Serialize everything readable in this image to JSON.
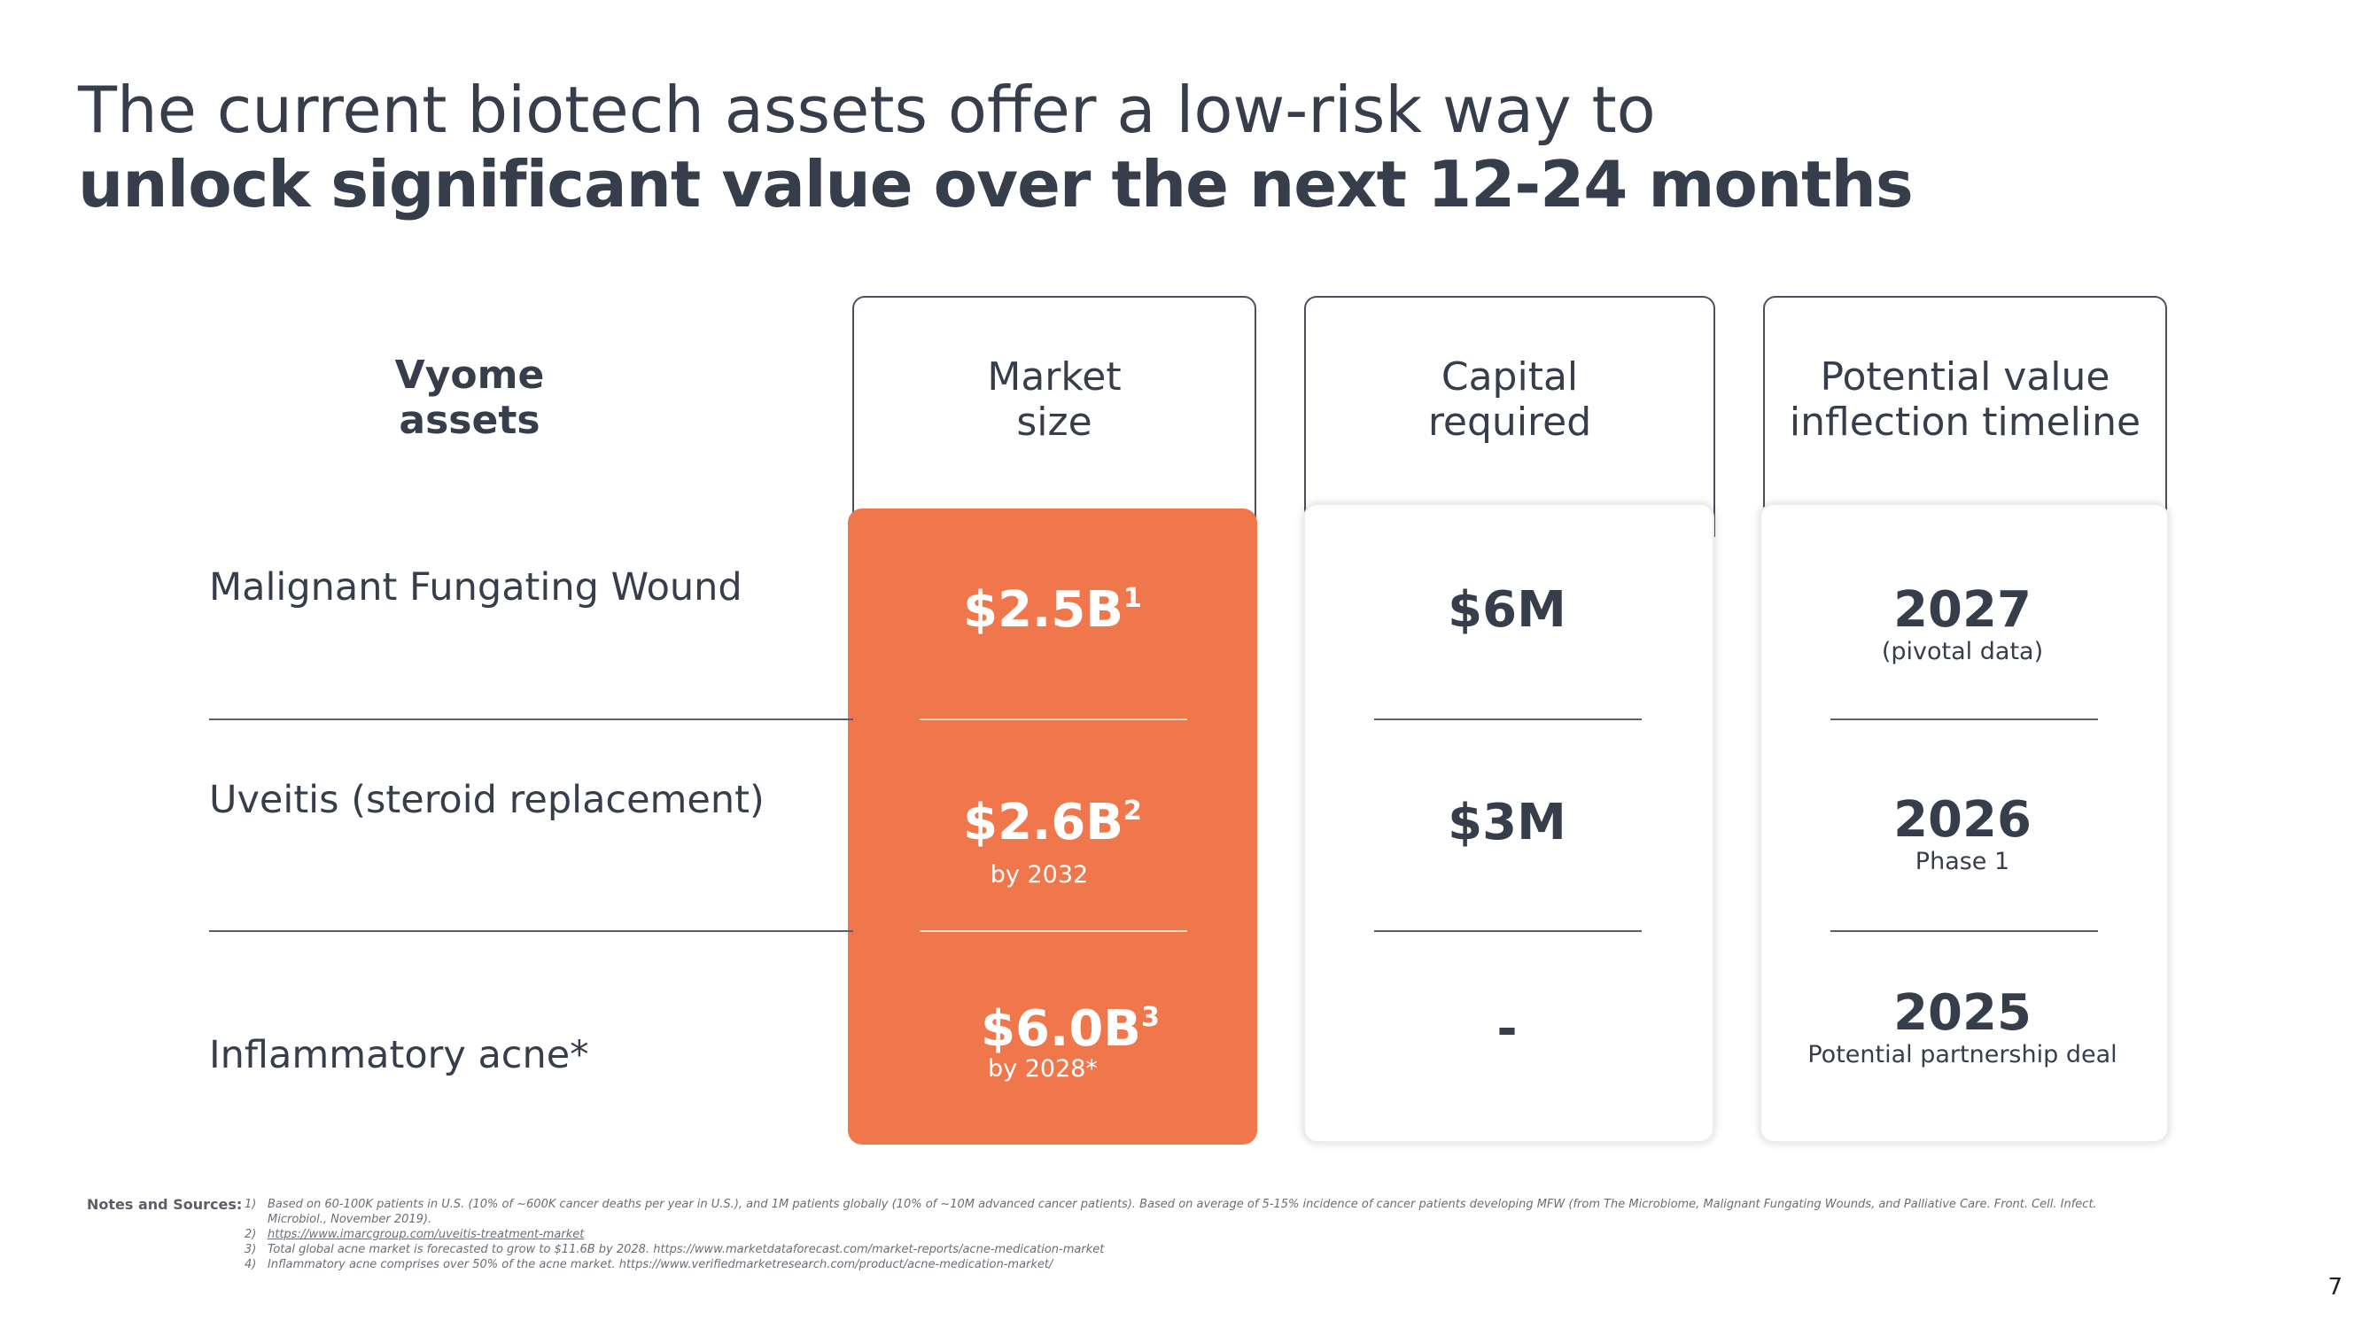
{
  "title": {
    "line1": "The current biotech assets offer a low-risk way to",
    "line2": "unlock significant value over the next 12-24 months"
  },
  "headers": {
    "assets": [
      "Vyome",
      "assets"
    ],
    "market_size": [
      "Market",
      "size"
    ],
    "capital_required": [
      "Capital",
      "required"
    ],
    "value_timeline": [
      "Potential value",
      "inflection timeline"
    ]
  },
  "rows": [
    {
      "asset": "Malignant Fungating Wound",
      "market_value": "$2.5B",
      "market_sup": "1",
      "market_sub": "",
      "capital": "$6M",
      "timeline_year": "2027",
      "timeline_note": "(pivotal data)"
    },
    {
      "asset": "Uveitis (steroid replacement)",
      "market_value": "$2.6B",
      "market_sup": "2",
      "market_sub": "by 2032",
      "capital": "$3M",
      "timeline_year": "2026",
      "timeline_note": "Phase 1"
    },
    {
      "asset": "Inflammatory acne*",
      "market_value": "$6.0B",
      "market_sup": "3",
      "market_sub": "by 2028*",
      "capital": "-",
      "timeline_year": "2025",
      "timeline_note": "Potential partnership deal"
    }
  ],
  "notes": {
    "label": "Notes and Sources:",
    "items": [
      {
        "num": "1)",
        "text": "Based on 60-100K patients in U.S. (10% of ~600K cancer deaths per year in U.S.), and 1M patients globally (10% of ~10M advanced cancer patients). Based on average of 5-15% incidence of cancer patients developing MFW (from  The Microbiome, Malignant Fungating Wounds, and Palliative Care. Front. Cell. Infect."
      },
      {
        "num": "",
        "text": "Microbiol., November 2019)."
      },
      {
        "num": "2)",
        "text": "https://www.imarcgroup.com/uveitis-treatment-market"
      },
      {
        "num": "3)",
        "text": "Total global acne market is forecasted to grow to $11.6B by 2028. https://www.marketdataforecast.com/market-reports/acne-medication-market"
      },
      {
        "num": "4)",
        "text": "Inflammatory acne comprises over 50% of the acne market. https://www.verifiedmarketresearch.com/product/acne-medication-market/"
      }
    ]
  },
  "page_number": "7",
  "colors": {
    "accent_orange": "#ef774b",
    "text_dark": "#363d4b"
  }
}
